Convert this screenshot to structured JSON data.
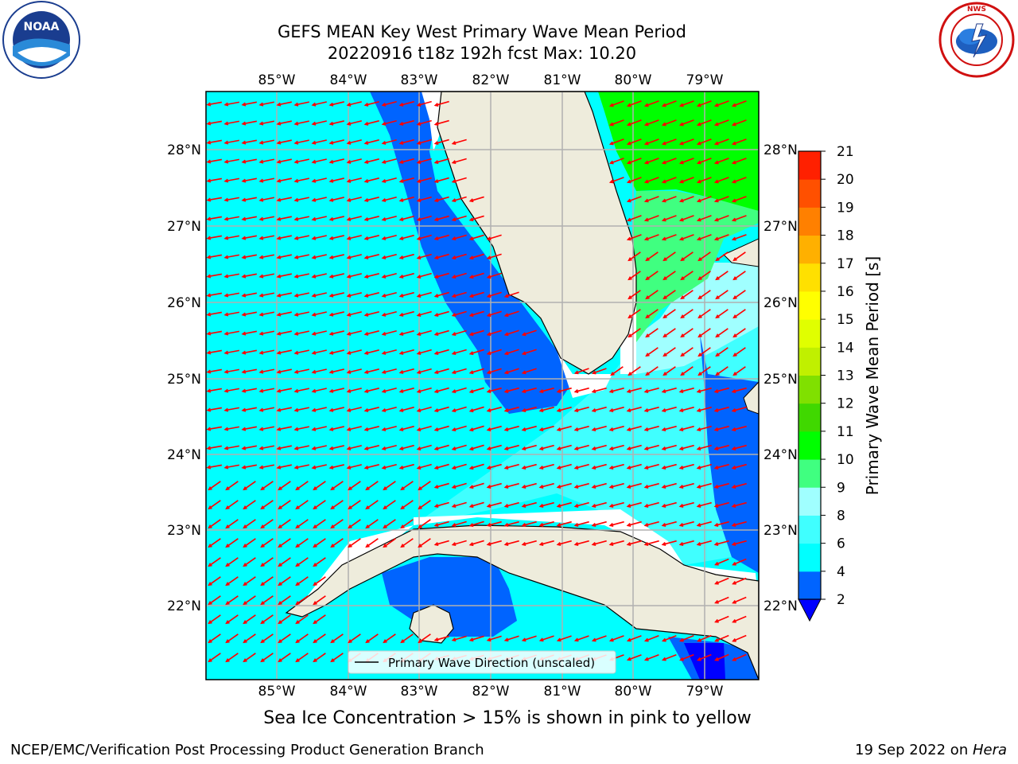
{
  "header": {
    "title_line1": "GEFS MEAN Key West Primary Wave Mean Period",
    "title_line2": "20220916 t18z 192h fcst   Max: 10.20"
  },
  "logos": {
    "left_name": "noaa-logo",
    "left_text": "NOAA",
    "left_ring_text": "NATIONAL OCEANIC AND ATMOSPHERIC ADMINISTRATION · U.S. DEPARTMENT OF COMMERCE",
    "right_name": "national-weather-service-logo",
    "right_ring_text": "NATIONAL WEATHER SERVICE"
  },
  "map": {
    "lon_labels": [
      "85°W",
      "84°W",
      "83°W",
      "82°W",
      "81°W",
      "80°W",
      "79°W"
    ],
    "lat_labels": [
      "28°N",
      "27°N",
      "26°N",
      "25°N",
      "24°N",
      "23°N",
      "22°N"
    ],
    "legend_label": "Primary Wave Direction (unscaled)",
    "arrow_color": "#ff0000",
    "land_color": "#eeecdc"
  },
  "colorbar": {
    "label": "Primary Wave Mean Period [s]",
    "ticks": [
      "2",
      "4",
      "6",
      "8",
      "9",
      "10",
      "11",
      "12",
      "13",
      "14",
      "15",
      "16",
      "17",
      "18",
      "19",
      "20",
      "21"
    ],
    "colors": [
      "#0064ff",
      "#00ffff",
      "#40ffff",
      "#a0ffff",
      "#40ff80",
      "#00ff00",
      "#40d800",
      "#80e000",
      "#c0f000",
      "#e0ff00",
      "#ffff00",
      "#ffe000",
      "#ffb000",
      "#ff8000",
      "#ff5000",
      "#ff2000"
    ],
    "under_color": "#0000ff"
  },
  "caption": "Sea Ice Concentration > 15% is shown in pink to yellow",
  "footer": {
    "left": "NCEP/EMC/Verification Post Processing Product Generation Branch",
    "right_prefix": "19 Sep 2022 on ",
    "right_host": "Hera"
  }
}
